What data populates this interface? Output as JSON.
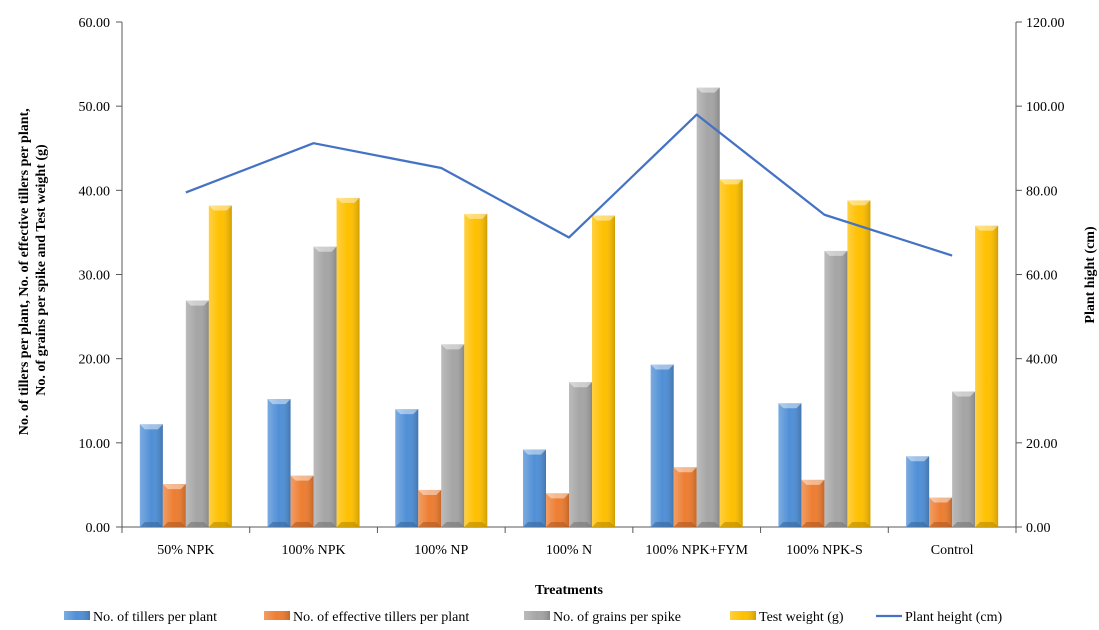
{
  "chart_data": {
    "type": "bar",
    "categories": [
      "50% NPK",
      "100% NPK",
      "100% NP",
      "100% N",
      "100% NPK+FYM",
      "100% NPK-S",
      "Control"
    ],
    "series": [
      {
        "name": "No. of tillers per plant",
        "axis": "left",
        "color": "#4f8fd6",
        "values": [
          12.2,
          15.2,
          14.0,
          9.2,
          19.3,
          14.7,
          8.4
        ]
      },
      {
        "name": "No. of effective tillers per plant",
        "axis": "left",
        "color": "#ed7d31",
        "values": [
          5.1,
          6.1,
          4.4,
          4.0,
          7.1,
          5.6,
          3.5
        ]
      },
      {
        "name": "No. of grains per spike",
        "axis": "left",
        "color": "#a5a5a5",
        "values": [
          26.9,
          33.3,
          21.7,
          17.2,
          52.2,
          32.8,
          16.1
        ]
      },
      {
        "name": "Test weight (g)",
        "axis": "left",
        "color": "#ffc000",
        "values": [
          38.2,
          39.1,
          37.2,
          37.0,
          41.3,
          38.8,
          35.8
        ]
      }
    ],
    "line_series": {
      "name": "Plant height (cm)",
      "axis": "right",
      "color": "#4472c4",
      "values": [
        79.5,
        91.2,
        85.3,
        68.8,
        98.0,
        74.2,
        64.5
      ]
    },
    "xlabel": "Treatments",
    "ylabel_left": "No. of tillers per plant, No. of effective tillers per plant, No. of grains per spike  and Test weight (g)",
    "ylabel_left_lines": [
      "No. of tillers per plant, No. of effective tillers per plant,",
      "No. of grains per spike  and Test weight (g)"
    ],
    "ylabel_right": "Plant hight (cm)",
    "ylim_left": [
      0,
      60
    ],
    "ylim_right": [
      0,
      120
    ],
    "yticks_left": [
      "0.00",
      "10.00",
      "20.00",
      "30.00",
      "40.00",
      "50.00",
      "60.00"
    ],
    "yticks_right": [
      "0.00",
      "20.00",
      "40.00",
      "60.00",
      "80.00",
      "100.00",
      "120.00"
    ],
    "grid": false,
    "legend_position": "bottom"
  }
}
